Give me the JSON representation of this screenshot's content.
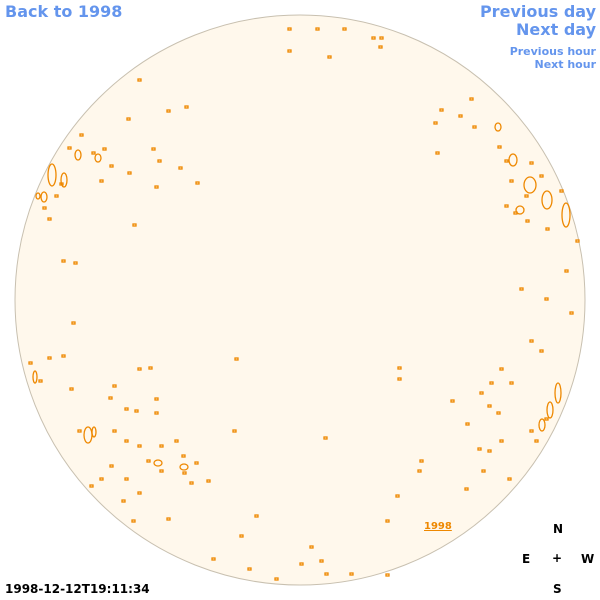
{
  "nav": {
    "back": "Back to 1998",
    "previous_day": "Previous day",
    "next_day": "Next day",
    "previous_hour": "Previous hour",
    "next_hour": "Next hour"
  },
  "year_link": "1998",
  "compass": {
    "north": "N",
    "east": "E",
    "center": "+",
    "west": "W",
    "south": "S"
  },
  "timestamp": "1998-12-12T19:11:34",
  "colors": {
    "link": "#6495ed",
    "disk_fill": "#fff8ec",
    "disk_border": "#c8c0b0",
    "feature": "#ee8800"
  }
}
